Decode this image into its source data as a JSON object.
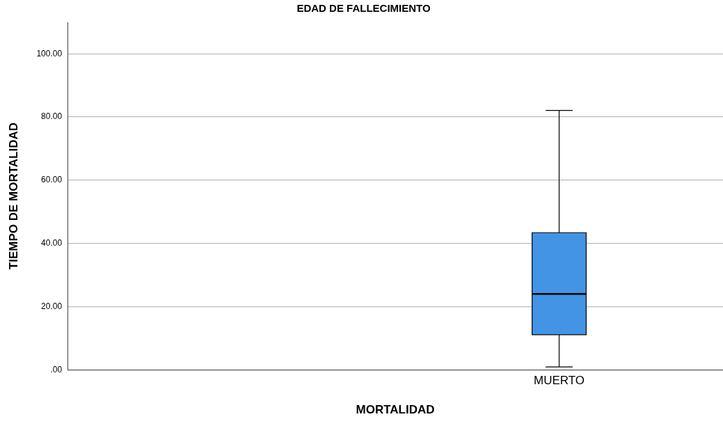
{
  "chart_data": {
    "type": "box",
    "title": "EDAD DE FALLECIMIENTO",
    "xlabel": "MORTALIDAD",
    "ylabel": "TIEMPO DE MORTALIDAD",
    "categories": [
      null,
      "MUERTO"
    ],
    "boxes": [
      null,
      {
        "low": 0.9,
        "q1": 11.1,
        "median": 24.0,
        "q3": 43.4,
        "high": 82.1
      }
    ],
    "color": "#4394e5",
    "ylim": [
      0,
      110
    ],
    "yticks": [
      {
        "value": 0,
        "label": ".00"
      },
      {
        "value": 20,
        "label": "20.00"
      },
      {
        "value": 40,
        "label": "40.00"
      },
      {
        "value": 60,
        "label": "60.00"
      },
      {
        "value": 80,
        "label": "80.00"
      },
      {
        "value": 100,
        "label": "100.00"
      }
    ],
    "grid": "y",
    "legend": false
  }
}
